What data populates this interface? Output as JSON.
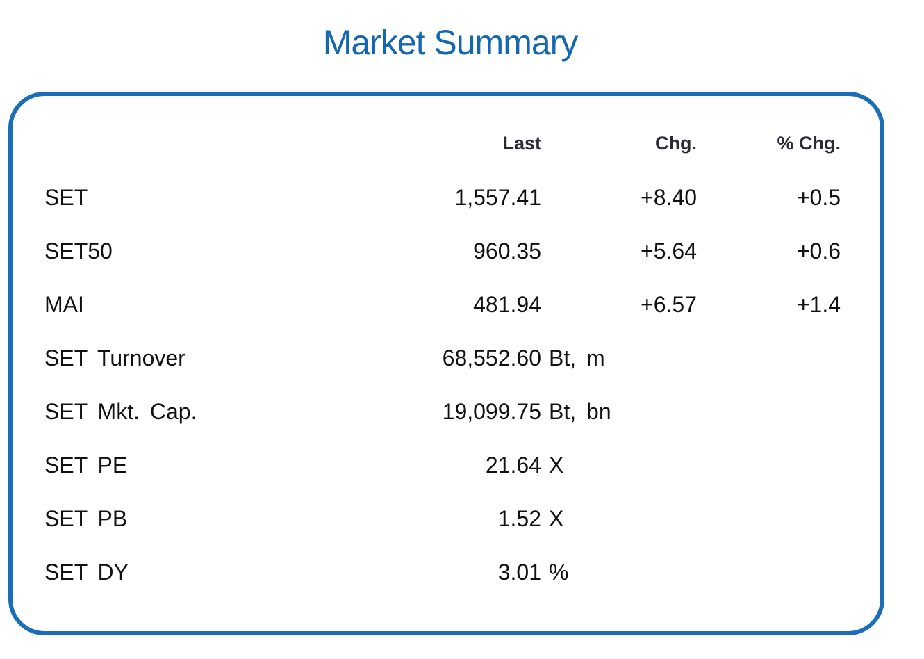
{
  "title": "Market Summary",
  "headers": {
    "last": "Last",
    "chg": "Chg.",
    "pct_chg": "% Chg."
  },
  "rows": [
    {
      "label": "SET",
      "last": "1,557.41",
      "chg": "+8.40",
      "pct": "+0.5"
    },
    {
      "label": "SET50",
      "last": "960.35",
      "chg": "+5.64",
      "pct": "+0.6"
    },
    {
      "label": "MAI",
      "last": "481.94",
      "chg": "+6.57",
      "pct": "+1.4"
    }
  ],
  "stats": [
    {
      "label": "SET Turnover",
      "value": "68,552.60",
      "unit": "Bt, m"
    },
    {
      "label": "SET Mkt. Cap.",
      "value": "19,099.75",
      "unit": "Bt, bn"
    },
    {
      "label": "SET PE",
      "value": "21.64",
      "unit": "X"
    },
    {
      "label": "SET PB",
      "value": "1.52",
      "unit": "X"
    },
    {
      "label": "SET DY",
      "value": "3.01",
      "unit": "%"
    }
  ],
  "colors": {
    "accent": "#1a6db7",
    "title": "#1467b0"
  }
}
